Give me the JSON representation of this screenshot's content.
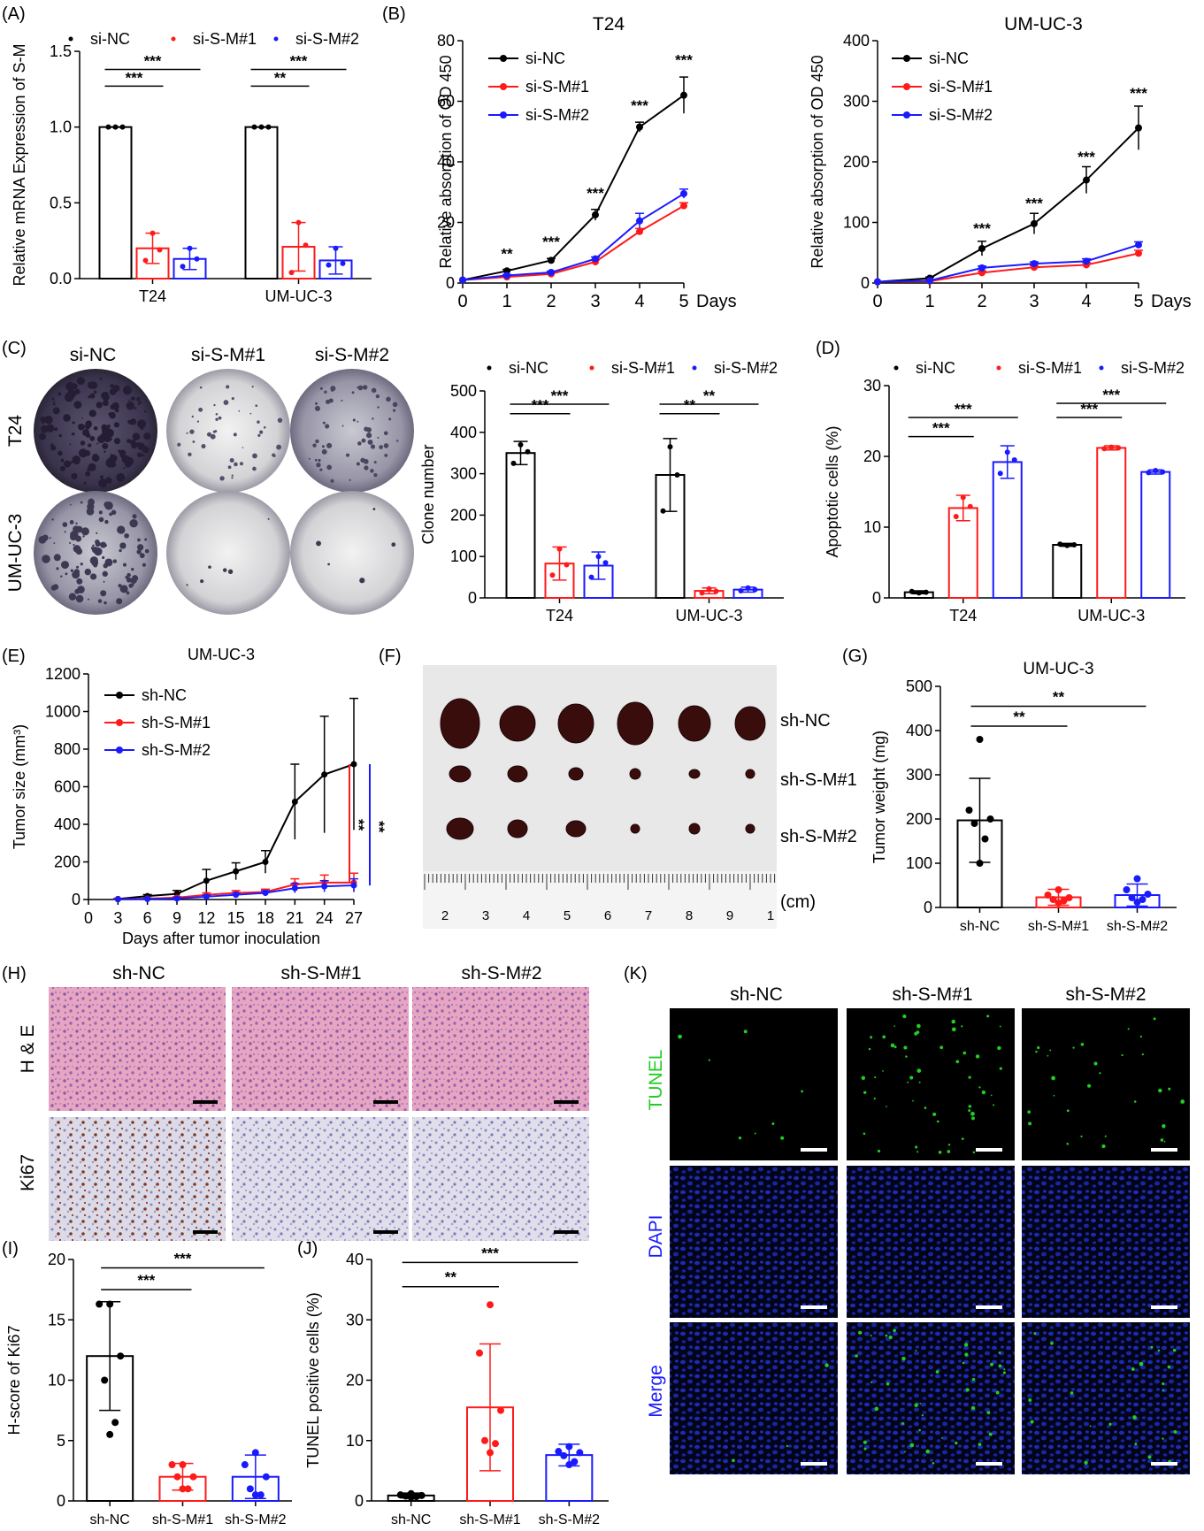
{
  "colors": {
    "black": "#000000",
    "red": "#ff1a1a",
    "blue": "#1a1aff",
    "green": "#22cc22"
  },
  "panels": {
    "A": {
      "letter": "(A)"
    },
    "B": {
      "letter": "(B)"
    },
    "C": {
      "letter": "(C)",
      "photo_cols": [
        "si-NC",
        "si-S-M#1",
        "si-S-M#2"
      ],
      "photo_rows": [
        "T24",
        "UM-UC-3"
      ]
    },
    "D": {
      "letter": "(D)"
    },
    "E": {
      "letter": "(E)"
    },
    "F": {
      "letter": "(F)",
      "rows": [
        "sh-NC",
        "sh-S-M#1",
        "sh-S-M#2"
      ],
      "ruler_unit": "(cm)",
      "ruler_numbers": [
        "2",
        "3",
        "4",
        "5",
        "6",
        "7",
        "8",
        "9",
        "1"
      ]
    },
    "G": {
      "letter": "(G)"
    },
    "H": {
      "letter": "(H)",
      "cols": [
        "sh-NC",
        "sh-S-M#1",
        "sh-S-M#2"
      ],
      "rows": [
        "H & E",
        "Ki67"
      ]
    },
    "I": {
      "letter": "(I)"
    },
    "J": {
      "letter": "(J)"
    },
    "K": {
      "letter": "(K)",
      "cols": [
        "sh-NC",
        "sh-S-M#1",
        "sh-S-M#2"
      ],
      "rows": [
        "TUNEL",
        "DAPI",
        "Merge"
      ]
    }
  },
  "chart_data": [
    {
      "id": "A",
      "type": "bar",
      "ylabel": "Relative mRNA Expression of S-M",
      "ylim": [
        0,
        1.5
      ],
      "yticks": [
        "0.0",
        "0.5",
        "1.0",
        "1.5"
      ],
      "categories": [
        "T24",
        "UM-UC-3"
      ],
      "series": [
        {
          "name": "si-NC",
          "values": [
            1.0,
            1.0
          ],
          "err": [
            0,
            0
          ],
          "points": [
            [
              1,
              1,
              1
            ],
            [
              1,
              1,
              1
            ]
          ]
        },
        {
          "name": "si-S-M#1",
          "values": [
            0.2,
            0.21
          ],
          "err": [
            0.1,
            0.16
          ],
          "points": [
            [
              0.3,
              0.19,
              0.12
            ],
            [
              0.37,
              0.22,
              0.04
            ]
          ]
        },
        {
          "name": "si-S-M#2",
          "values": [
            0.13,
            0.12
          ],
          "err": [
            0.07,
            0.09
          ],
          "points": [
            [
              0.2,
              0.13,
              0.08
            ],
            [
              0.2,
              0.1,
              0.09
            ]
          ]
        }
      ],
      "sig": [
        {
          "label": "***",
          "cat": 0,
          "from": 0,
          "to": 1,
          "y": 1.27
        },
        {
          "label": "***",
          "cat": 0,
          "from": 0,
          "to": 2,
          "y": 1.38
        },
        {
          "label": "**",
          "cat": 1,
          "from": 0,
          "to": 1,
          "y": 1.27
        },
        {
          "label": "***",
          "cat": 1,
          "from": 0,
          "to": 2,
          "y": 1.38
        }
      ]
    },
    {
      "id": "B1",
      "type": "line",
      "title": "T24",
      "ylabel": "Relative absorption of OD 450",
      "xunit": "Days",
      "ylim": [
        0,
        80
      ],
      "yticks": [
        "0",
        "20",
        "40",
        "60",
        "80"
      ],
      "x": [
        0,
        1,
        2,
        3,
        4,
        5
      ],
      "series": [
        {
          "name": "si-NC",
          "values": [
            1,
            4,
            7.5,
            22.5,
            51.5,
            62
          ],
          "err": [
            0,
            0.5,
            0.6,
            1.8,
            1.6,
            6
          ]
        },
        {
          "name": "si-S-M#1",
          "values": [
            1,
            2,
            3,
            7,
            17,
            25.5
          ],
          "err": [
            0,
            0.3,
            0.4,
            0.6,
            1,
            1
          ]
        },
        {
          "name": "si-S-M#2",
          "values": [
            1,
            2.5,
            3.5,
            8,
            20.5,
            29.5
          ],
          "err": [
            0,
            0.3,
            0.4,
            0.6,
            2.5,
            1.5
          ]
        }
      ],
      "annotations": [
        {
          "x": 1,
          "y": 8,
          "text": "**"
        },
        {
          "x": 2,
          "y": 12,
          "text": "***"
        },
        {
          "x": 3,
          "y": 28,
          "text": "***"
        },
        {
          "x": 4,
          "y": 57,
          "text": "***"
        },
        {
          "x": 5,
          "y": 72,
          "text": "***"
        }
      ]
    },
    {
      "id": "B2",
      "type": "line",
      "title": "UM-UC-3",
      "ylabel": "Relative absorption of OD 450",
      "xunit": "Days",
      "ylim": [
        0,
        400
      ],
      "yticks": [
        "0",
        "100",
        "200",
        "300",
        "400"
      ],
      "x": [
        0,
        1,
        2,
        3,
        4,
        5
      ],
      "series": [
        {
          "name": "si-NC",
          "values": [
            2,
            8,
            57,
            98,
            170,
            256
          ],
          "err": [
            0,
            2,
            12,
            17,
            22,
            36
          ]
        },
        {
          "name": "si-S-M#1",
          "values": [
            2,
            3,
            17,
            26,
            30,
            49
          ],
          "err": [
            0,
            1,
            3,
            3,
            4,
            5
          ]
        },
        {
          "name": "si-S-M#2",
          "values": [
            2,
            4,
            25,
            32,
            36,
            63
          ],
          "err": [
            0,
            1,
            3,
            3,
            4,
            5
          ]
        }
      ],
      "annotations": [
        {
          "x": 2,
          "y": 82,
          "text": "***"
        },
        {
          "x": 3,
          "y": 123,
          "text": "***"
        },
        {
          "x": 4,
          "y": 200,
          "text": "***"
        },
        {
          "x": 5,
          "y": 305,
          "text": "***"
        }
      ]
    },
    {
      "id": "C",
      "type": "bar",
      "ylabel": "Clone number",
      "ylim": [
        0,
        500
      ],
      "yticks": [
        "0",
        "100",
        "200",
        "300",
        "400",
        "500"
      ],
      "categories": [
        "T24",
        "UM-UC-3"
      ],
      "series": [
        {
          "name": "si-NC",
          "values": [
            350,
            297
          ],
          "err": [
            28,
            88
          ],
          "points": [
            [
              370,
              353,
              325
            ],
            [
              365,
              297,
              210
            ]
          ]
        },
        {
          "name": "si-S-M#1",
          "values": [
            83,
            17
          ],
          "err": [
            40,
            7
          ],
          "points": [
            [
              118,
              80,
              55
            ],
            [
              22,
              16,
              12
            ]
          ]
        },
        {
          "name": "si-S-M#2",
          "values": [
            78,
            20
          ],
          "err": [
            33,
            6
          ],
          "points": [
            [
              100,
              85,
              50
            ],
            [
              24,
              20,
              17
            ]
          ]
        }
      ],
      "sig": [
        {
          "label": "***",
          "cat": 0,
          "from": 0,
          "to": 1,
          "y": 445
        },
        {
          "label": "***",
          "cat": 0,
          "from": 0,
          "to": 2,
          "y": 468
        },
        {
          "label": "**",
          "cat": 1,
          "from": 0,
          "to": 1,
          "y": 445
        },
        {
          "label": "**",
          "cat": 1,
          "from": 0,
          "to": 2,
          "y": 468
        }
      ]
    },
    {
      "id": "D",
      "type": "bar",
      "ylabel": "Apoptotic cells (%)",
      "ylim": [
        0,
        30
      ],
      "yticks": [
        "0",
        "10",
        "20",
        "30"
      ],
      "categories": [
        "T24",
        "UM-UC-3"
      ],
      "series": [
        {
          "name": "si-NC",
          "values": [
            0.8,
            7.5
          ],
          "err": [
            0.2,
            0.2
          ],
          "points": [
            [
              0.7,
              0.8,
              0.9
            ],
            [
              7.4,
              7.5,
              7.6
            ]
          ]
        },
        {
          "name": "si-S-M#1",
          "values": [
            12.7,
            21.2
          ],
          "err": [
            1.8,
            0.3
          ],
          "points": [
            [
              14.2,
              12.9,
              11.5
            ],
            [
              21.3,
              21.2,
              21.1
            ]
          ]
        },
        {
          "name": "si-S-M#2",
          "values": [
            19.2,
            17.8
          ],
          "err": [
            2.3,
            0.3
          ],
          "points": [
            [
              20.6,
              19.5,
              17.6
            ],
            [
              18,
              17.8,
              17.7
            ]
          ]
        }
      ],
      "sig": [
        {
          "label": "***",
          "cat": 0,
          "from": 0,
          "to": 1,
          "y": 22.8
        },
        {
          "label": "***",
          "cat": 0,
          "from": 0,
          "to": 2,
          "y": 25.5
        },
        {
          "label": "***",
          "cat": 1,
          "from": 0,
          "to": 1,
          "y": 25.5
        },
        {
          "label": "***",
          "cat": 1,
          "from": 0,
          "to": 2,
          "y": 27.5
        }
      ]
    },
    {
      "id": "E",
      "type": "line",
      "title": "UM-UC-3",
      "xlabel": "Days after tumor inoculation",
      "ylabel": "Tumor size (mm³)",
      "ylim": [
        0,
        1200
      ],
      "yticks": [
        "0",
        "200",
        "400",
        "600",
        "800",
        "1000",
        "1200"
      ],
      "xticks": [
        "0",
        "3",
        "6",
        "9",
        "12",
        "15",
        "18",
        "21",
        "24",
        "27"
      ],
      "x": [
        3,
        6,
        9,
        12,
        15,
        18,
        21,
        24,
        27
      ],
      "series": [
        {
          "name": "sh-NC",
          "values": [
            3,
            18,
            30,
            100,
            150,
            200,
            520,
            665,
            720
          ],
          "err": [
            3,
            8,
            18,
            60,
            45,
            60,
            200,
            310,
            350
          ]
        },
        {
          "name": "sh-S-M#1",
          "values": [
            2,
            5,
            10,
            25,
            35,
            40,
            80,
            90,
            90
          ],
          "err": [
            2,
            3,
            5,
            10,
            12,
            15,
            30,
            40,
            50
          ]
        },
        {
          "name": "sh-S-M#2",
          "values": [
            1,
            3,
            5,
            15,
            25,
            35,
            60,
            70,
            75
          ],
          "err": [
            1,
            2,
            4,
            8,
            10,
            12,
            25,
            30,
            35
          ]
        }
      ],
      "sig": [
        {
          "label": "**",
          "color": "red"
        },
        {
          "label": "**",
          "color": "blue"
        }
      ]
    },
    {
      "id": "G",
      "type": "bar",
      "title": "UM-UC-3",
      "ylabel": "Tumor weight (mg)",
      "ylim": [
        0,
        500
      ],
      "yticks": [
        "0",
        "100",
        "200",
        "300",
        "400",
        "500"
      ],
      "categories": [
        "sh-NC",
        "sh-S-M#1",
        "sh-S-M#2"
      ],
      "values": [
        197,
        23,
        28
      ],
      "err": [
        95,
        18,
        25
      ],
      "points": [
        [
          380,
          220,
          200,
          190,
          155,
          100
        ],
        [
          40,
          28,
          22,
          18,
          15,
          10
        ],
        [
          65,
          40,
          30,
          22,
          18,
          12
        ]
      ],
      "sig": [
        {
          "label": "**",
          "from": 0,
          "to": 1,
          "y": 410
        },
        {
          "label": "**",
          "from": 0,
          "to": 2,
          "y": 455
        }
      ]
    },
    {
      "id": "I",
      "type": "bar",
      "ylabel": "H-score of Ki67",
      "ylim": [
        0,
        20
      ],
      "yticks": [
        "0",
        "5",
        "10",
        "15",
        "20"
      ],
      "categories": [
        "sh-NC",
        "sh-S-M#1",
        "sh-S-M#2"
      ],
      "values": [
        12,
        2,
        2
      ],
      "err": [
        4.5,
        1.1,
        1.8
      ],
      "points": [
        [
          16.3,
          16.3,
          12,
          10,
          6.5,
          5.5
        ],
        [
          3,
          3,
          2,
          2,
          1,
          1
        ],
        [
          4,
          3,
          2,
          1,
          0.5,
          0.5
        ]
      ],
      "sig": [
        {
          "label": "***",
          "from": 0,
          "to": 1,
          "y": 17.5
        },
        {
          "label": "***",
          "from": 0,
          "to": 2,
          "y": 19.3
        }
      ]
    },
    {
      "id": "J",
      "type": "bar",
      "ylabel": "TUNEL positive cells (%)",
      "ylim": [
        0,
        40
      ],
      "yticks": [
        "0",
        "10",
        "20",
        "30",
        "40"
      ],
      "categories": [
        "sh-NC",
        "sh-S-M#1",
        "sh-S-M#2"
      ],
      "values": [
        0.9,
        15.5,
        7.6
      ],
      "err": [
        0.4,
        10.5,
        1.8
      ],
      "points": [
        [
          1.2,
          1,
          0.9,
          0.8,
          0.7,
          0.6
        ],
        [
          32.5,
          24.5,
          15,
          10,
          9.5,
          8
        ],
        [
          9,
          8.2,
          8,
          7.5,
          6.5,
          6
        ]
      ],
      "sig": [
        {
          "label": "**",
          "from": 0,
          "to": 1,
          "y": 35.5
        },
        {
          "label": "***",
          "from": 0,
          "to": 2,
          "y": 39.5
        }
      ]
    }
  ]
}
